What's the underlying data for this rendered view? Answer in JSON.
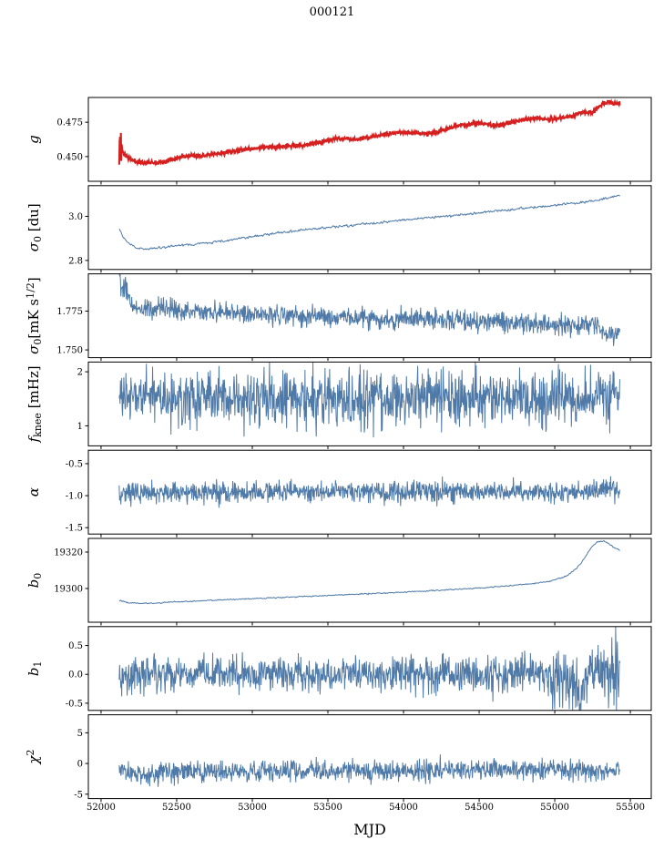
{
  "title": "000121",
  "chart_data": {
    "type": "line",
    "title": "000121",
    "xlabel": "MJD",
    "xlim": [
      51916,
      55638
    ],
    "x_ticks": {
      "values": [
        52000,
        52500,
        53000,
        53500,
        54000,
        54500,
        55000,
        55500
      ],
      "labels": [
        "52000",
        "52500",
        "53000",
        "53500",
        "54000",
        "54500",
        "55000",
        "55500"
      ]
    },
    "x_data_range": [
      52120,
      55430
    ],
    "n_points": 1200,
    "legend": "none",
    "grid": false,
    "panels": [
      {
        "name": "g",
        "ylabel_segments": [
          {
            "t": "g",
            "i": true
          }
        ],
        "color": "#d62020",
        "line_width": 2.1,
        "seed": 11,
        "ylim": [
          0.432,
          0.493
        ],
        "yticks": {
          "values": [
            0.45,
            0.475
          ],
          "labels": [
            "0.450",
            "0.475"
          ]
        },
        "noise": 0.0007,
        "smooth": false,
        "trend": [
          [
            52118,
            0.473
          ],
          [
            52120,
            0.4438
          ],
          [
            52122,
            0.4715
          ],
          [
            52124,
            0.4443
          ],
          [
            52126,
            0.47
          ],
          [
            52128,
            0.4448
          ],
          [
            52131,
            0.4685
          ],
          [
            52134,
            0.4455
          ],
          [
            52137,
            0.46
          ],
          [
            52141,
            0.4535
          ],
          [
            52148,
            0.4525
          ],
          [
            52160,
            0.4512
          ],
          [
            52180,
            0.449
          ],
          [
            52210,
            0.4472
          ],
          [
            52250,
            0.4458
          ],
          [
            52300,
            0.4455
          ],
          [
            52360,
            0.4458
          ],
          [
            52420,
            0.4465
          ],
          [
            52470,
            0.448
          ],
          [
            52520,
            0.4497
          ],
          [
            52570,
            0.4504
          ],
          [
            52640,
            0.4506
          ],
          [
            52700,
            0.4509
          ],
          [
            52760,
            0.4518
          ],
          [
            52820,
            0.453
          ],
          [
            52880,
            0.454
          ],
          [
            52950,
            0.455
          ],
          [
            53020,
            0.456
          ],
          [
            53100,
            0.4566
          ],
          [
            53180,
            0.4574
          ],
          [
            53260,
            0.4578
          ],
          [
            53340,
            0.4582
          ],
          [
            53420,
            0.4596
          ],
          [
            53500,
            0.4618
          ],
          [
            53560,
            0.4629
          ],
          [
            53620,
            0.4631
          ],
          [
            53680,
            0.4626
          ],
          [
            53740,
            0.4632
          ],
          [
            53800,
            0.4645
          ],
          [
            53860,
            0.4655
          ],
          [
            53920,
            0.4668
          ],
          [
            53980,
            0.4678
          ],
          [
            54040,
            0.4678
          ],
          [
            54100,
            0.4671
          ],
          [
            54160,
            0.4666
          ],
          [
            54220,
            0.4677
          ],
          [
            54280,
            0.4698
          ],
          [
            54340,
            0.472
          ],
          [
            54400,
            0.4732
          ],
          [
            54460,
            0.4739
          ],
          [
            54520,
            0.474
          ],
          [
            54580,
            0.473
          ],
          [
            54640,
            0.473
          ],
          [
            54700,
            0.4744
          ],
          [
            54760,
            0.476
          ],
          [
            54820,
            0.477
          ],
          [
            54880,
            0.4778
          ],
          [
            54940,
            0.4775
          ],
          [
            55000,
            0.4772
          ],
          [
            55060,
            0.4782
          ],
          [
            55110,
            0.4795
          ],
          [
            55160,
            0.4818
          ],
          [
            55210,
            0.482
          ],
          [
            55250,
            0.4823
          ],
          [
            55290,
            0.486
          ],
          [
            55330,
            0.4892
          ],
          [
            55360,
            0.49
          ],
          [
            55390,
            0.4878
          ],
          [
            55415,
            0.4885
          ],
          [
            55430,
            0.4882
          ]
        ]
      },
      {
        "name": "sigma0-du",
        "ylabel_segments": [
          {
            "t": "σ",
            "i": true
          },
          {
            "t": "0",
            "pos": "sub"
          },
          {
            "t": " [du]"
          }
        ],
        "color": "#4f7aa8",
        "line_width": 1.0,
        "seed": 22,
        "ylim": [
          2.759,
          3.139
        ],
        "yticks": {
          "values": [
            2.8,
            3.0
          ],
          "labels": [
            "2.8",
            "3.0"
          ]
        },
        "noise": 0.004,
        "smooth": true,
        "trend": [
          [
            52120,
            2.948
          ],
          [
            52150,
            2.905
          ],
          [
            52180,
            2.88
          ],
          [
            52220,
            2.862
          ],
          [
            52260,
            2.853
          ],
          [
            52310,
            2.852
          ],
          [
            52370,
            2.856
          ],
          [
            52440,
            2.862
          ],
          [
            52520,
            2.868
          ],
          [
            52620,
            2.873
          ],
          [
            52720,
            2.88
          ],
          [
            52820,
            2.89
          ],
          [
            52920,
            2.9
          ],
          [
            53020,
            2.91
          ],
          [
            53140,
            2.922
          ],
          [
            53260,
            2.931
          ],
          [
            53380,
            2.941
          ],
          [
            53500,
            2.95
          ],
          [
            53620,
            2.957
          ],
          [
            53740,
            2.965
          ],
          [
            53860,
            2.973
          ],
          [
            53980,
            2.982
          ],
          [
            54100,
            2.99
          ],
          [
            54220,
            2.998
          ],
          [
            54340,
            3.005
          ],
          [
            54460,
            3.013
          ],
          [
            54580,
            3.022
          ],
          [
            54700,
            3.03
          ],
          [
            54820,
            3.038
          ],
          [
            54940,
            3.046
          ],
          [
            55060,
            3.055
          ],
          [
            55160,
            3.062
          ],
          [
            55260,
            3.07
          ],
          [
            55340,
            3.08
          ],
          [
            55400,
            3.092
          ],
          [
            55430,
            3.098
          ]
        ]
      },
      {
        "name": "sigma0-mks",
        "ylabel_segments": [
          {
            "t": "σ",
            "i": true
          },
          {
            "t": "0",
            "pos": "sub"
          },
          {
            "t": "[mK s"
          },
          {
            "t": "1/2",
            "pos": "sup"
          },
          {
            "t": "]"
          }
        ],
        "color": "#4f7aa8",
        "line_width": 1.0,
        "seed": 33,
        "ylim": [
          1.745,
          1.799
        ],
        "yticks": {
          "values": [
            1.75,
            1.775
          ],
          "labels": [
            "1.750",
            "1.775"
          ]
        },
        "noise": 0.0032,
        "smooth": false,
        "trend": [
          [
            52120,
            1.8
          ],
          [
            52135,
            1.786
          ],
          [
            52160,
            1.79
          ],
          [
            52200,
            1.779
          ],
          [
            52260,
            1.776
          ],
          [
            52340,
            1.7758
          ],
          [
            52440,
            1.7762
          ],
          [
            52560,
            1.775
          ],
          [
            52700,
            1.7744
          ],
          [
            52900,
            1.7738
          ],
          [
            53100,
            1.773
          ],
          [
            53300,
            1.7722
          ],
          [
            53500,
            1.771
          ],
          [
            53700,
            1.7705
          ],
          [
            53900,
            1.77
          ],
          [
            54100,
            1.7698
          ],
          [
            54300,
            1.7692
          ],
          [
            54500,
            1.7685
          ],
          [
            54700,
            1.7678
          ],
          [
            54900,
            1.7668
          ],
          [
            55050,
            1.7658
          ],
          [
            55150,
            1.7652
          ],
          [
            55250,
            1.766
          ],
          [
            55330,
            1.7618
          ],
          [
            55390,
            1.7578
          ],
          [
            55415,
            1.7595
          ],
          [
            55430,
            1.7605
          ]
        ]
      },
      {
        "name": "f-knee",
        "ylabel_segments": [
          {
            "t": "f",
            "i": true
          },
          {
            "t": "knee",
            "pos": "sub"
          },
          {
            "t": " [mHz]"
          }
        ],
        "color": "#4f7aa8",
        "line_width": 1.0,
        "seed": 44,
        "ylim": [
          0.63,
          2.18
        ],
        "yticks": {
          "values": [
            1,
            2
          ],
          "labels": [
            "1",
            "2"
          ]
        },
        "noise": 0.25,
        "smooth": false,
        "trend": [
          [
            52120,
            1.56
          ],
          [
            52400,
            1.53
          ],
          [
            53000,
            1.52
          ],
          [
            54000,
            1.505
          ],
          [
            55000,
            1.5
          ],
          [
            55430,
            1.52
          ]
        ]
      },
      {
        "name": "alpha",
        "ylabel_segments": [
          {
            "t": "α",
            "i": true
          }
        ],
        "color": "#4f7aa8",
        "line_width": 1.0,
        "seed": 55,
        "ylim": [
          -1.6,
          -0.29
        ],
        "yticks": {
          "values": [
            -1.5,
            -1.0,
            -0.5
          ],
          "labels": [
            "-1.5",
            "-1.0",
            "-0.5"
          ]
        },
        "noise": 0.082,
        "smooth": false,
        "trend": [
          [
            52120,
            -0.95
          ],
          [
            53000,
            -0.948
          ],
          [
            54000,
            -0.945
          ],
          [
            55430,
            -0.935
          ]
        ]
      },
      {
        "name": "b0",
        "ylabel_segments": [
          {
            "t": "b",
            "i": true
          },
          {
            "t": "0",
            "pos": "sub"
          }
        ],
        "color": "#4f7aa8",
        "line_width": 1.0,
        "seed": 66,
        "ylim": [
          19281.5,
          19327.5
        ],
        "yticks": {
          "values": [
            19300,
            19320
          ],
          "labels": [
            "19300",
            "19320"
          ]
        },
        "noise": 0.25,
        "smooth": true,
        "trend": [
          [
            52120,
            19293.6
          ],
          [
            52180,
            19292.3
          ],
          [
            52260,
            19291.9
          ],
          [
            52360,
            19292.0
          ],
          [
            52480,
            19292.6
          ],
          [
            52620,
            19293.1
          ],
          [
            52780,
            19293.7
          ],
          [
            52960,
            19294.3
          ],
          [
            53140,
            19294.9
          ],
          [
            53320,
            19295.6
          ],
          [
            53500,
            19296.2
          ],
          [
            53700,
            19296.9
          ],
          [
            53900,
            19297.6
          ],
          [
            54100,
            19298.4
          ],
          [
            54300,
            19299.3
          ],
          [
            54500,
            19300.3
          ],
          [
            54700,
            19301.5
          ],
          [
            54850,
            19302.6
          ],
          [
            54980,
            19304.2
          ],
          [
            55080,
            19307.0
          ],
          [
            55150,
            19311.5
          ],
          [
            55200,
            19317.0
          ],
          [
            55240,
            19322.5
          ],
          [
            55280,
            19325.5
          ],
          [
            55320,
            19326.2
          ],
          [
            55360,
            19324.5
          ],
          [
            55400,
            19322.0
          ],
          [
            55430,
            19321.0
          ]
        ]
      },
      {
        "name": "b1",
        "ylabel_segments": [
          {
            "t": "b",
            "i": true
          },
          {
            "t": "1",
            "pos": "sub"
          }
        ],
        "color": "#4f7aa8",
        "line_width": 1.0,
        "seed": 77,
        "ylim": [
          -0.625,
          0.828
        ],
        "yticks": {
          "values": [
            -0.5,
            0.0,
            0.5
          ],
          "labels": [
            "-0.5",
            "0.0",
            "0.5"
          ]
        },
        "noise": 0.155,
        "smooth": false,
        "noise_segments": [
          {
            "to": 54950,
            "amp": 0.155
          },
          {
            "to": 55250,
            "amp": 0.24
          },
          {
            "to": 55430,
            "amp": 0.3
          }
        ],
        "trend": [
          [
            52120,
            0.0
          ],
          [
            54900,
            0.0
          ],
          [
            55020,
            -0.05
          ],
          [
            55100,
            -0.22
          ],
          [
            55160,
            -0.28
          ],
          [
            55220,
            -0.1
          ],
          [
            55280,
            0.0
          ],
          [
            55430,
            0.05
          ]
        ]
      },
      {
        "name": "chi2",
        "ylabel_segments": [
          {
            "t": "χ",
            "i": true
          },
          {
            "t": "2",
            "pos": "sup"
          }
        ],
        "color": "#4f7aa8",
        "line_width": 1.0,
        "seed": 88,
        "ylim": [
          -5.72,
          7.94
        ],
        "yticks": {
          "values": [
            -5,
            0,
            5
          ],
          "labels": [
            "-5",
            "0",
            "5"
          ]
        },
        "noise": 0.85,
        "smooth": false,
        "trend": [
          [
            52120,
            -0.7
          ],
          [
            52200,
            -1.7
          ],
          [
            52300,
            -1.9
          ],
          [
            52450,
            -1.3
          ],
          [
            52700,
            -1.25
          ],
          [
            53200,
            -1.2
          ],
          [
            54000,
            -1.15
          ],
          [
            54800,
            -1.1
          ],
          [
            55430,
            -1.0
          ]
        ]
      }
    ]
  }
}
